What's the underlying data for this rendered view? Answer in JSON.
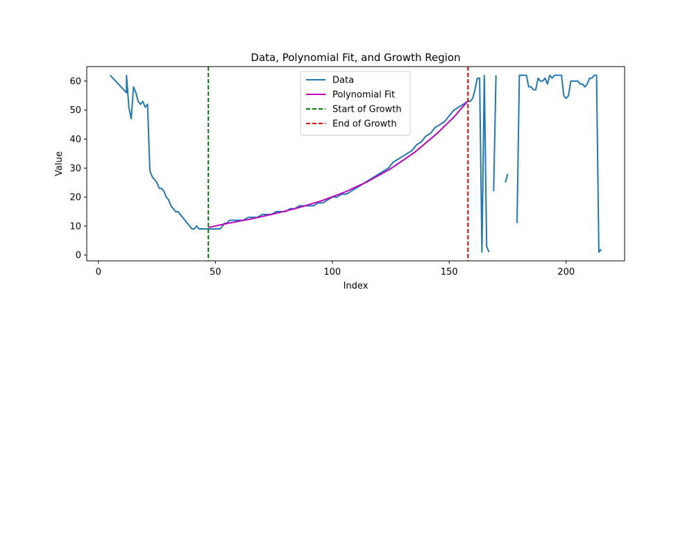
{
  "chart_data": {
    "type": "line",
    "title": "Data, Polynomial Fit, and Growth Region",
    "xlabel": "Index",
    "ylabel": "Value",
    "xlim": [
      -5,
      225
    ],
    "ylim": [
      -2,
      65
    ],
    "xticks": [
      0,
      50,
      100,
      150,
      200
    ],
    "yticks": [
      0,
      10,
      20,
      30,
      40,
      50,
      60
    ],
    "grid": false,
    "legend_position": "top-center",
    "series": [
      {
        "name": "Data",
        "color": "#1f77b4",
        "style": "solid",
        "segments": [
          [
            [
              5,
              62
            ],
            [
              12,
              56
            ],
            [
              12,
              62
            ],
            [
              13,
              51
            ],
            [
              14,
              47
            ],
            [
              15,
              58
            ],
            [
              16,
              56
            ],
            [
              17,
              53
            ],
            [
              18,
              52
            ],
            [
              19,
              53
            ],
            [
              20,
              51
            ],
            [
              21,
              52
            ],
            [
              22,
              29
            ],
            [
              23,
              27
            ],
            [
              25,
              25
            ],
            [
              26,
              23
            ],
            [
              27,
              23
            ],
            [
              28,
              22
            ],
            [
              29,
              20
            ],
            [
              30,
              19
            ],
            [
              31,
              17
            ],
            [
              33,
              15
            ],
            [
              34,
              15
            ],
            [
              36,
              13
            ],
            [
              37,
              12
            ],
            [
              38,
              11
            ],
            [
              40,
              9
            ],
            [
              41,
              9
            ],
            [
              42,
              10
            ],
            [
              43,
              9
            ],
            [
              47,
              9
            ],
            [
              48,
              9
            ],
            [
              50,
              9
            ],
            [
              52,
              9
            ],
            [
              53,
              10
            ],
            [
              54,
              11
            ],
            [
              55,
              11
            ],
            [
              56,
              12
            ],
            [
              60,
              12
            ],
            [
              62,
              12
            ],
            [
              64,
              13
            ],
            [
              66,
              13
            ],
            [
              68,
              13
            ],
            [
              70,
              14
            ],
            [
              74,
              14
            ],
            [
              76,
              15
            ],
            [
              78,
              15
            ],
            [
              80,
              15
            ],
            [
              82,
              16
            ],
            [
              84,
              16
            ],
            [
              86,
              17
            ],
            [
              88,
              17
            ],
            [
              90,
              17
            ],
            [
              92,
              17
            ],
            [
              94,
              18
            ],
            [
              96,
              18
            ],
            [
              98,
              19
            ],
            [
              100,
              20
            ],
            [
              102,
              20
            ],
            [
              104,
              21
            ],
            [
              106,
              21
            ],
            [
              108,
              22
            ],
            [
              110,
              23
            ],
            [
              112,
              24
            ],
            [
              114,
              25
            ],
            [
              116,
              26
            ],
            [
              118,
              27
            ],
            [
              120,
              28
            ],
            [
              122,
              29
            ],
            [
              124,
              30
            ],
            [
              126,
              32
            ],
            [
              128,
              33
            ],
            [
              130,
              34
            ],
            [
              132,
              35
            ],
            [
              134,
              36
            ],
            [
              136,
              38
            ],
            [
              138,
              39
            ],
            [
              140,
              41
            ],
            [
              142,
              42
            ],
            [
              144,
              44
            ],
            [
              146,
              45
            ],
            [
              148,
              46
            ],
            [
              150,
              48
            ],
            [
              152,
              50
            ],
            [
              154,
              51
            ],
            [
              156,
              52
            ],
            [
              158,
              53
            ],
            [
              159,
              53
            ],
            [
              160,
              54
            ],
            [
              161,
              57
            ],
            [
              162,
              61
            ],
            [
              163,
              61
            ],
            [
              164,
              1
            ],
            [
              165,
              62
            ],
            [
              166,
              3
            ],
            [
              167,
              1
            ]
          ],
          [
            [
              169,
              22
            ],
            [
              170,
              62
            ]
          ],
          [
            [
              174,
              25
            ],
            [
              175,
              28
            ]
          ],
          [
            [
              179,
              11
            ],
            [
              180,
              62
            ],
            [
              183,
              62
            ],
            [
              184,
              58
            ],
            [
              185,
              58
            ],
            [
              186,
              57
            ],
            [
              187,
              57
            ],
            [
              188,
              61
            ],
            [
              189,
              60
            ],
            [
              190,
              60
            ],
            [
              191,
              61
            ],
            [
              192,
              59
            ],
            [
              193,
              62
            ],
            [
              194,
              61
            ],
            [
              195,
              62
            ],
            [
              198,
              62
            ],
            [
              199,
              55
            ],
            [
              200,
              54
            ],
            [
              201,
              55
            ],
            [
              202,
              60
            ],
            [
              205,
              60
            ],
            [
              206,
              59
            ],
            [
              207,
              59
            ],
            [
              208,
              58
            ],
            [
              209,
              59
            ],
            [
              210,
              61
            ],
            [
              211,
              61
            ],
            [
              212,
              62
            ],
            [
              213,
              62
            ],
            [
              214,
              1
            ],
            [
              215,
              2
            ]
          ]
        ]
      },
      {
        "name": "Polynomial Fit",
        "color": "#bf00bf",
        "style": "solid",
        "segments": [
          [
            [
              47,
              9.5
            ],
            [
              55,
              10.9
            ],
            [
              65,
              12.4
            ],
            [
              75,
              14.2
            ],
            [
              85,
              16.2
            ],
            [
              95,
              18.6
            ],
            [
              105,
              21.6
            ],
            [
              115,
              25.3
            ],
            [
              125,
              29.8
            ],
            [
              135,
              35.3
            ],
            [
              145,
              42.1
            ],
            [
              152,
              47.6
            ],
            [
              158,
              53.2
            ]
          ]
        ]
      },
      {
        "name": "Start of Growth",
        "color": "#008000",
        "style": "dashed",
        "vline_x": 47
      },
      {
        "name": "End of Growth",
        "color": "#ff0000",
        "style": "dashed",
        "vline_x": 158
      }
    ]
  }
}
